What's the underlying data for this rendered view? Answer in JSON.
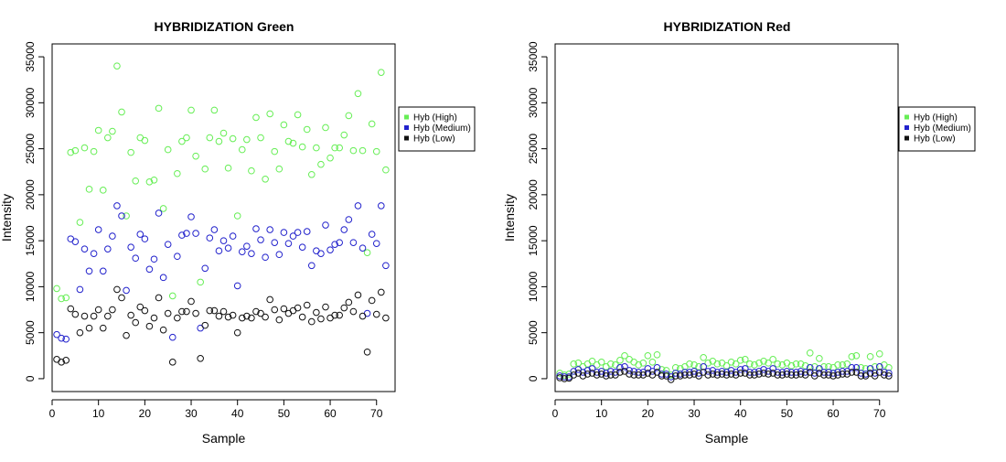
{
  "chart_data": [
    {
      "type": "scatter",
      "title": "HYBRIDIZATION Green",
      "xlabel": "Sample",
      "ylabel": "Intensity",
      "xlim": [
        0,
        74
      ],
      "ylim": [
        -1400,
        36400
      ],
      "x_ticks": [
        0,
        10,
        20,
        30,
        40,
        50,
        60,
        70
      ],
      "y_ticks": [
        0,
        5000,
        10000,
        15000,
        20000,
        25000,
        30000,
        35000
      ],
      "grid": false,
      "legend_position": "right",
      "series": [
        {
          "name": "Hyb (High)",
          "color": "#66ee55",
          "values": [
            9800,
            8700,
            8800,
            24600,
            24800,
            17000,
            25100,
            20600,
            24700,
            27000,
            20500,
            26200,
            26900,
            34000,
            29000,
            17700,
            24600,
            21500,
            26200,
            25900,
            21400,
            21600,
            29400,
            18500,
            24900,
            9000,
            22300,
            25800,
            26200,
            29200,
            24200,
            10500,
            22800,
            26200,
            29200,
            25800,
            26700,
            22900,
            26100,
            17700,
            24900,
            26000,
            22600,
            28400,
            26200,
            21700,
            28800,
            24700,
            22800,
            27600,
            25800,
            25600,
            28700,
            25200,
            27100,
            22200,
            25100,
            23300,
            27300,
            24000,
            25100,
            25100,
            26500,
            28600,
            24800,
            31000,
            24800,
            13700,
            27700,
            24700,
            33300,
            22700
          ]
        },
        {
          "name": "Hyb (Medium)",
          "color": "#2222cc",
          "values": [
            4800,
            4400,
            4300,
            15200,
            14900,
            9700,
            14100,
            11700,
            13600,
            16200,
            11700,
            14100,
            15500,
            18800,
            17700,
            9600,
            14300,
            13100,
            15700,
            15200,
            11900,
            13000,
            18000,
            11000,
            14600,
            4500,
            13300,
            15600,
            15800,
            17600,
            15800,
            5500,
            12000,
            15300,
            16200,
            13900,
            15000,
            14200,
            15500,
            10100,
            13800,
            14400,
            13600,
            16300,
            15100,
            13200,
            16200,
            14800,
            13500,
            15900,
            14700,
            15500,
            15900,
            14300,
            16000,
            12300,
            13900,
            13600,
            16700,
            14000,
            14600,
            14800,
            16200,
            17300,
            14800,
            18800,
            14200,
            7100,
            15700,
            14700,
            18800,
            12300
          ]
        },
        {
          "name": "Hyb (Low)",
          "color": "#111111",
          "values": [
            2100,
            1800,
            2000,
            7600,
            7000,
            5000,
            6800,
            5500,
            6800,
            7500,
            5500,
            6800,
            7500,
            9700,
            8800,
            4700,
            6900,
            6100,
            7800,
            7400,
            5700,
            6600,
            8800,
            5300,
            7100,
            1800,
            6600,
            7300,
            7300,
            8400,
            7100,
            2200,
            5800,
            7400,
            7400,
            6800,
            7300,
            6700,
            6900,
            5000,
            6600,
            6800,
            6600,
            7300,
            7100,
            6700,
            8600,
            7500,
            6400,
            7600,
            7100,
            7400,
            7700,
            6700,
            8000,
            6200,
            7200,
            6500,
            7800,
            6600,
            6900,
            6900,
            7700,
            8300,
            7300,
            9100,
            6800,
            2900,
            8500,
            7000,
            9400,
            6600
          ]
        }
      ]
    },
    {
      "type": "scatter",
      "title": "HYBRIDIZATION Red",
      "xlabel": "Sample",
      "ylabel": "Intensity",
      "xlim": [
        0,
        74
      ],
      "ylim": [
        -1400,
        36400
      ],
      "x_ticks": [
        0,
        10,
        20,
        30,
        40,
        50,
        60,
        70
      ],
      "y_ticks": [
        0,
        5000,
        10000,
        15000,
        20000,
        25000,
        30000,
        35000
      ],
      "grid": false,
      "legend_position": "right",
      "series": [
        {
          "name": "Hyb (High)",
          "color": "#66ee55",
          "values": [
            600,
            400,
            500,
            1600,
            1700,
            1300,
            1600,
            1900,
            1500,
            1800,
            1300,
            1600,
            1500,
            2000,
            2500,
            2100,
            1800,
            1500,
            1700,
            2500,
            1800,
            2600,
            1000,
            900,
            400,
            1200,
            1100,
            1300,
            1600,
            1500,
            1300,
            2300,
            1700,
            1900,
            1600,
            1700,
            1400,
            1800,
            1600,
            2000,
            2100,
            1600,
            1500,
            1700,
            1900,
            1700,
            2100,
            1600,
            1500,
            1700,
            1400,
            1600,
            1600,
            1400,
            2800,
            1300,
            2200,
            1300,
            1300,
            1200,
            1500,
            1500,
            1600,
            2400,
            2500,
            1200,
            1100,
            2400,
            1300,
            2700,
            1500,
            1200
          ]
        },
        {
          "name": "Hyb (Medium)",
          "color": "#2222cc",
          "values": [
            300,
            200,
            200,
            800,
            1000,
            700,
            900,
            1100,
            700,
            800,
            600,
            800,
            700,
            1200,
            1300,
            900,
            800,
            700,
            700,
            1100,
            800,
            1200,
            500,
            500,
            200,
            600,
            500,
            700,
            700,
            800,
            600,
            1300,
            800,
            900,
            700,
            800,
            700,
            900,
            700,
            1000,
            1100,
            700,
            700,
            800,
            1000,
            800,
            1100,
            700,
            700,
            800,
            700,
            700,
            800,
            700,
            1200,
            600,
            1100,
            700,
            700,
            600,
            700,
            800,
            800,
            1200,
            1200,
            600,
            500,
            1100,
            600,
            1300,
            700,
            600
          ]
        },
        {
          "name": "Hyb (Low)",
          "color": "#111111",
          "values": [
            100,
            0,
            50,
            400,
            600,
            300,
            500,
            600,
            400,
            500,
            300,
            400,
            400,
            700,
            800,
            500,
            400,
            400,
            400,
            600,
            400,
            700,
            300,
            300,
            -100,
            300,
            300,
            400,
            400,
            500,
            300,
            700,
            400,
            500,
            400,
            500,
            400,
            500,
            400,
            600,
            600,
            400,
            400,
            500,
            600,
            500,
            600,
            400,
            400,
            500,
            400,
            400,
            500,
            400,
            700,
            300,
            600,
            400,
            400,
            300,
            400,
            500,
            500,
            700,
            700,
            300,
            300,
            600,
            300,
            700,
            400,
            300
          ]
        }
      ]
    }
  ]
}
